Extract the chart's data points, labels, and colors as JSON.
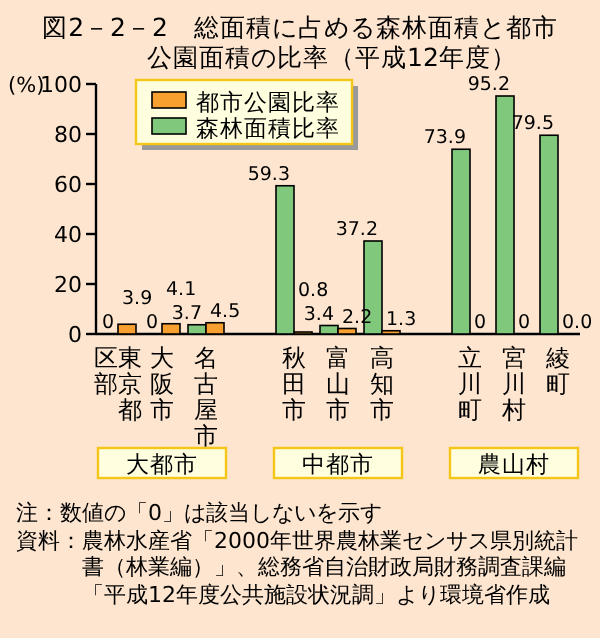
{
  "chart_data": {
    "type": "bar",
    "title": "図2－2－2　総面積に占める森林面積と都市公園面積の比率（平成12年度）",
    "ylabel": "(%)",
    "categories": [
      "東京都区部",
      "大阪市",
      "名古屋市",
      null,
      "秋田市",
      "富山市",
      "高知市",
      null,
      "立川町",
      "宮川村",
      "綾町"
    ],
    "series": [
      {
        "name": "森林面積比率",
        "color": "#80c87c",
        "values": [
          0,
          0,
          3.7,
          null,
          59.3,
          3.4,
          37.2,
          null,
          73.9,
          95.2,
          79.5
        ],
        "value_labels": [
          "0",
          "0",
          "3.7",
          null,
          "59.3",
          "3.4",
          "37.2",
          null,
          "73.9",
          "95.2",
          "79.5"
        ]
      },
      {
        "name": "都市公園比率",
        "color": "#f7a030",
        "values": [
          3.9,
          4.1,
          4.5,
          null,
          0.8,
          2.2,
          1.3,
          null,
          0,
          0,
          0
        ],
        "value_labels": [
          "3.9",
          "4.1",
          "4.5",
          null,
          "0.8",
          "2.2",
          "1.3",
          null,
          "0",
          "0",
          "0.0"
        ]
      }
    ],
    "ylim": [
      0,
      100
    ],
    "yticks": [
      0,
      20,
      40,
      60,
      80,
      100
    ],
    "legend": "top left",
    "annotations": [
      "大都市",
      "中都市",
      "農山村",
      "注：数値の「0」は該当しないを示す",
      "資料：農林水産省「2000年世界農林業センサス県別統計書（林業編）」、総務省自治財政局財務調査課編「平成12年度公共施設状況調」より環境省作成"
    ]
  }
}
